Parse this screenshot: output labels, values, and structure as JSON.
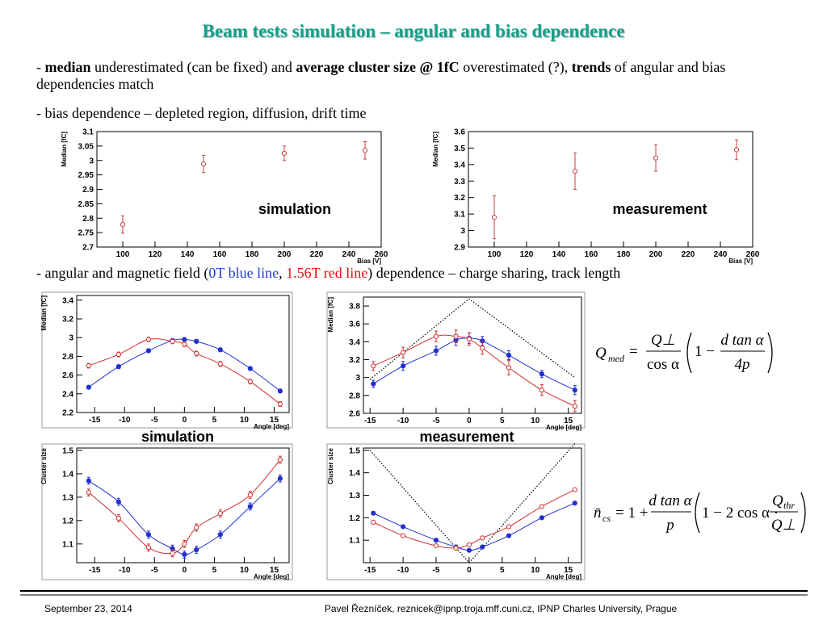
{
  "header": {
    "title": "Beam tests simulation – angular and bias dependence"
  },
  "bullets": [
    {
      "segments": [
        {
          "text": "- "
        },
        {
          "text": "median",
          "bold": true
        },
        {
          "text": " underestimated (can be fixed) and "
        },
        {
          "text": "average cluster size @ 1fC",
          "bold": true
        },
        {
          "text": " overestimated (?), "
        },
        {
          "text": "trends",
          "bold": true
        },
        {
          "text": " of angular and bias dependencies match"
        }
      ]
    },
    {
      "segments": [
        {
          "text": "- bias dependence – depleted region, diffusion, drift time"
        }
      ]
    },
    {
      "segments": [
        {
          "text": "- angular and magnetic field ("
        },
        {
          "text": "0T blue line",
          "color": "#1f3fd0"
        },
        {
          "text": ", "
        },
        {
          "text": "1.56T red line",
          "color": "#e01010"
        },
        {
          "text": ") dependence – charge sharing, track length"
        }
      ]
    }
  ],
  "chart_data": [
    {
      "type": "scatter",
      "xlabel": "Bias [V]",
      "ylabel": "Median [fC]",
      "annotation": "simulation",
      "xlim": [
        84,
        260
      ],
      "xticks": [
        100,
        120,
        140,
        160,
        180,
        200,
        220,
        240,
        260
      ],
      "ylim": [
        2.7,
        3.1
      ],
      "yticks": [
        2.7,
        2.75,
        2.8,
        2.85,
        2.9,
        2.95,
        3,
        3.05,
        3.1
      ],
      "series": [
        {
          "color": "#c84040",
          "marker": "open",
          "line": false,
          "x": [
            100,
            150,
            200,
            250
          ],
          "values": [
            2.778,
            2.988,
            3.025,
            3.035
          ],
          "errors": [
            0.03,
            0.03,
            0.025,
            0.03
          ]
        }
      ]
    },
    {
      "type": "scatter",
      "xlabel": "Bias [V]",
      "ylabel": "Median [fC]",
      "annotation": "measurement",
      "xlim": [
        84,
        260
      ],
      "xticks": [
        100,
        120,
        140,
        160,
        180,
        200,
        220,
        240,
        260
      ],
      "ylim": [
        2.9,
        3.6
      ],
      "yticks": [
        2.9,
        3,
        3.1,
        3.2,
        3.3,
        3.4,
        3.5,
        3.6
      ],
      "series": [
        {
          "color": "#c84040",
          "marker": "open",
          "line": false,
          "x": [
            100,
            150,
            200,
            250
          ],
          "values": [
            3.08,
            3.36,
            3.44,
            3.49
          ],
          "errors": [
            0.13,
            0.11,
            0.08,
            0.06
          ]
        }
      ]
    },
    {
      "type": "scatter",
      "xlabel": "Angle [deg]",
      "ylabel": "Median [fC]",
      "annotation": "simulation",
      "xlim": [
        -18,
        17.5
      ],
      "xticks": [
        -15,
        -10,
        -5,
        0,
        5,
        10,
        15
      ],
      "ylim": [
        2.2,
        3.45
      ],
      "yticks": [
        2.2,
        2.4,
        2.6,
        2.8,
        3,
        3.2,
        3.4
      ],
      "series": [
        {
          "color": "#2030d0",
          "marker": "filled",
          "line": true,
          "x": [
            -16,
            -11,
            -6,
            -2,
            0,
            2,
            6,
            11,
            16
          ],
          "values": [
            2.47,
            2.69,
            2.86,
            2.97,
            2.98,
            2.96,
            2.87,
            2.67,
            2.43
          ],
          "errors": [
            0.02,
            0.02,
            0.02,
            0.02,
            0.02,
            0.02,
            0.02,
            0.02,
            0.02
          ]
        },
        {
          "color": "#d03030",
          "marker": "open",
          "line": true,
          "x": [
            -16,
            -11,
            -6,
            -2,
            0,
            2,
            6,
            11,
            16
          ],
          "values": [
            2.7,
            2.82,
            2.98,
            2.96,
            2.93,
            2.83,
            2.72,
            2.53,
            2.29
          ],
          "errors": [
            0.025,
            0.025,
            0.025,
            0.025,
            0.025,
            0.025,
            0.025,
            0.025,
            0.025
          ]
        }
      ]
    },
    {
      "type": "scatter",
      "xlabel": "Angle [deg]",
      "ylabel": "Median [fC]",
      "annotation": "measurement",
      "xlim": [
        -16,
        17
      ],
      "xticks": [
        -15,
        -10,
        -5,
        0,
        5,
        10,
        15
      ],
      "ylim": [
        2.6,
        3.9
      ],
      "yticks": [
        2.6,
        2.8,
        3,
        3.2,
        3.4,
        3.6,
        3.8
      ],
      "series": [
        {
          "color": "#000000",
          "marker": "none",
          "line": true,
          "dotted": true,
          "x": [
            -15,
            0,
            16
          ],
          "values": [
            2.98,
            3.88,
            3.0
          ]
        },
        {
          "color": "#2030d0",
          "marker": "filled",
          "line": true,
          "x": [
            -14.5,
            -10,
            -5,
            -2,
            0,
            2,
            6,
            11,
            16
          ],
          "values": [
            2.93,
            3.13,
            3.3,
            3.42,
            3.44,
            3.41,
            3.25,
            3.04,
            2.86
          ],
          "errors": [
            0.04,
            0.05,
            0.05,
            0.06,
            0.06,
            0.05,
            0.05,
            0.04,
            0.05
          ]
        },
        {
          "color": "#d03030",
          "marker": "open",
          "line": true,
          "x": [
            -14.5,
            -10,
            -5,
            -2,
            0,
            2,
            6,
            11,
            16
          ],
          "values": [
            3.13,
            3.28,
            3.46,
            3.46,
            3.43,
            3.33,
            3.11,
            2.86,
            2.68
          ],
          "errors": [
            0.05,
            0.06,
            0.06,
            0.07,
            0.07,
            0.07,
            0.08,
            0.06,
            0.06
          ]
        }
      ]
    },
    {
      "type": "scatter",
      "xlabel": "Angle [deg]",
      "ylabel": "Cluster size",
      "xlim": [
        -18,
        17.5
      ],
      "xticks": [
        -15,
        -10,
        -5,
        0,
        5,
        10,
        15
      ],
      "ylim": [
        1.02,
        1.51
      ],
      "yticks": [
        1.1,
        1.2,
        1.3,
        1.4,
        1.5
      ],
      "series": [
        {
          "color": "#2030d0",
          "marker": "filled",
          "line": true,
          "x": [
            -16,
            -11,
            -6,
            -2,
            0,
            2,
            6,
            11,
            16
          ],
          "values": [
            1.37,
            1.28,
            1.14,
            1.08,
            1.055,
            1.075,
            1.14,
            1.26,
            1.38
          ],
          "errors": [
            0.015,
            0.015,
            0.015,
            0.015,
            0.015,
            0.015,
            0.015,
            0.015,
            0.015
          ]
        },
        {
          "color": "#d03030",
          "marker": "open",
          "line": true,
          "x": [
            -16,
            -11,
            -6,
            -2,
            0,
            2,
            6,
            11,
            16
          ],
          "values": [
            1.32,
            1.21,
            1.085,
            1.06,
            1.1,
            1.17,
            1.23,
            1.31,
            1.46
          ],
          "errors": [
            0.015,
            0.015,
            0.015,
            0.015,
            0.015,
            0.015,
            0.015,
            0.015,
            0.015
          ]
        }
      ]
    },
    {
      "type": "scatter",
      "xlabel": "Angle [deg]",
      "ylabel": "Cluster size",
      "xlim": [
        -16,
        17
      ],
      "xticks": [
        -15,
        -10,
        -5,
        0,
        5,
        10,
        15
      ],
      "ylim": [
        1.0,
        1.51
      ],
      "yticks": [
        1.1,
        1.2,
        1.3,
        1.4,
        1.5
      ],
      "series": [
        {
          "color": "#000000",
          "marker": "none",
          "line": true,
          "dotted": true,
          "x": [
            -15,
            0,
            16
          ],
          "values": [
            1.5,
            1.0,
            1.53
          ]
        },
        {
          "color": "#2030d0",
          "marker": "filled",
          "line": true,
          "x": [
            -14.5,
            -10,
            -5,
            -2,
            0,
            2,
            6,
            11,
            16
          ],
          "values": [
            1.22,
            1.16,
            1.1,
            1.07,
            1.055,
            1.07,
            1.12,
            1.2,
            1.265
          ]
        },
        {
          "color": "#d03030",
          "marker": "open",
          "line": true,
          "x": [
            -14.5,
            -10,
            -5,
            -2,
            0,
            2,
            6,
            11,
            16
          ],
          "values": [
            1.18,
            1.12,
            1.075,
            1.065,
            1.08,
            1.11,
            1.16,
            1.25,
            1.325
          ]
        }
      ]
    }
  ],
  "formulas": [
    {
      "lhs": "Q",
      "lhs_sub": "med",
      "eq": "=",
      "num1": "Q⊥",
      "den1": "cos α",
      "one": "1 −",
      "num2": "d tan α",
      "den2": "4p"
    },
    {
      "lhs": "n̄",
      "lhs_sub": "cs",
      "eq": "= 1 +",
      "num1": "d tan α",
      "den1": "p",
      "mid": "1 − 2 cos α ·",
      "num2": "Q",
      "num2_sub": "thr",
      "den2": "Q⊥"
    }
  ],
  "footer": {
    "date": "September 23, 2014",
    "author": "Pavel Řezníček, reznicek@ipnp.troja.mff.cuni.cz, IPNP Charles University, Prague"
  }
}
